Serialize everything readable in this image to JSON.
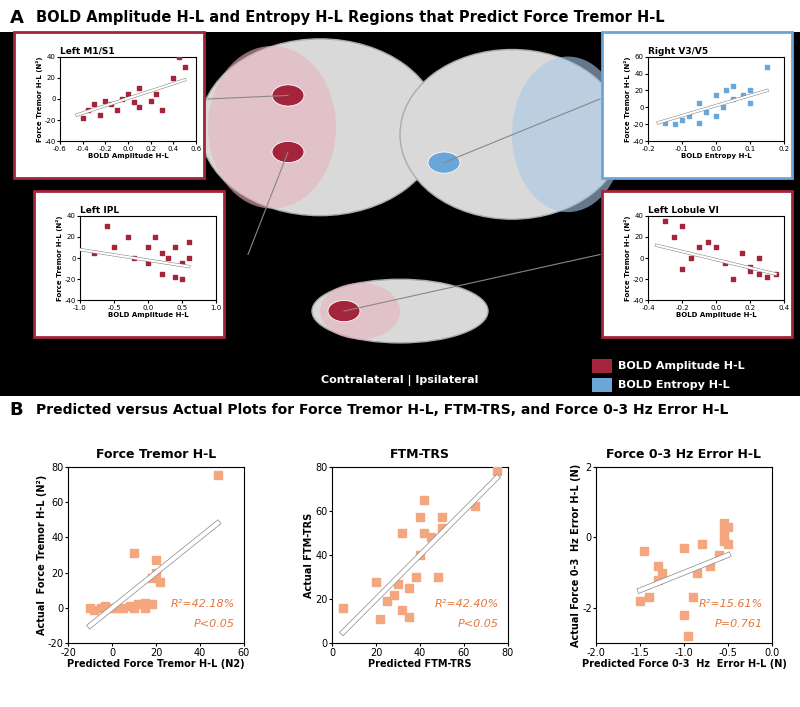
{
  "panel_a": {
    "letter": "A",
    "title": "BOLD Amplitude H-L and Entropy H-L Regions that Predict Force Tremor H-L",
    "region_key": [
      {
        "name": "BOLD Amplitude H-L",
        "color": "#a3243b"
      },
      {
        "name": "BOLD Entropy H-L",
        "color": "#6aa6d8"
      }
    ],
    "view_label": "Contralateral | Ipsilateral"
  },
  "panel_b": {
    "letter": "B",
    "title": "Predicted versus Actual Plots for Force Tremor H-L, FTM-TRS, and Force 0-3 Hz Error H-L"
  },
  "chart_data": [
    {
      "type": "scatter",
      "title": "Left M1/S1",
      "x_label": "BOLD Amplitude H-L",
      "y_label": "Force Tremor H-L (N²)",
      "xlim": [
        -0.6,
        0.6
      ],
      "ylim": [
        -40,
        40
      ],
      "xticks": [
        -0.6,
        -0.4,
        -0.2,
        0.0,
        0.2,
        0.4,
        0.6
      ],
      "yticks": [
        -40,
        -20,
        0,
        20,
        40
      ],
      "x": [
        -0.4,
        -0.35,
        -0.3,
        -0.25,
        -0.2,
        -0.15,
        -0.1,
        -0.05,
        0.0,
        0.05,
        0.1,
        0.1,
        0.2,
        0.25,
        0.3,
        0.4,
        0.45,
        0.5
      ],
      "values": [
        -18,
        -10,
        -5,
        -15,
        -2,
        -5,
        -10,
        0,
        5,
        -3,
        -8,
        10,
        -2,
        5,
        -10,
        20,
        40,
        30
      ],
      "color": "#a3243b",
      "marker": "square",
      "fit": {
        "x": [
          -0.45,
          0.5
        ],
        "values": [
          -15,
          18
        ],
        "color": "#ffffff"
      }
    },
    {
      "type": "scatter",
      "title": "Right V3/V5",
      "x_label": "BOLD Entropy H-L",
      "y_label": "Force Tremor H-L (N²)",
      "xlim": [
        -0.2,
        0.2
      ],
      "ylim": [
        -40,
        60
      ],
      "xticks": [
        -0.2,
        -0.1,
        0.0,
        0.1,
        0.2
      ],
      "yticks": [
        -40,
        -20,
        0,
        20,
        40,
        60
      ],
      "x": [
        -0.15,
        -0.12,
        -0.1,
        -0.08,
        -0.05,
        -0.05,
        -0.03,
        0.0,
        0.0,
        0.02,
        0.03,
        0.05,
        0.05,
        0.08,
        0.1,
        0.1,
        0.15
      ],
      "values": [
        -18,
        -20,
        -15,
        -10,
        -18,
        5,
        -5,
        -10,
        15,
        0,
        20,
        10,
        25,
        15,
        5,
        20,
        48
      ],
      "color": "#6aa6d8",
      "marker": "square",
      "fit": {
        "x": [
          -0.17,
          0.15
        ],
        "values": [
          -18,
          20
        ],
        "color": "#ffffff"
      }
    },
    {
      "type": "scatter",
      "title": "Left IPL",
      "x_label": "BOLD Amplitude H-L",
      "y_label": "Force Tremor H-L (N²)",
      "xlim": [
        -1.0,
        1.0
      ],
      "ylim": [
        -40,
        40
      ],
      "xticks": [
        -1.0,
        -0.5,
        0.0,
        0.5,
        1.0
      ],
      "yticks": [
        -40,
        -20,
        0,
        20,
        40
      ],
      "x": [
        -0.8,
        -0.6,
        -0.5,
        -0.3,
        -0.2,
        0.0,
        0.0,
        0.1,
        0.2,
        0.2,
        0.3,
        0.4,
        0.4,
        0.5,
        0.5,
        0.6,
        0.6
      ],
      "values": [
        5,
        30,
        10,
        20,
        0,
        10,
        -5,
        20,
        5,
        -15,
        0,
        -18,
        10,
        -5,
        -20,
        0,
        15
      ],
      "color": "#a3243b",
      "marker": "square",
      "fit": {
        "x": [
          -1.0,
          0.6
        ],
        "values": [
          8,
          -8
        ],
        "color": "#ffffff"
      }
    },
    {
      "type": "scatter",
      "title": "Left Lobule VI",
      "x_label": "BOLD Amplitude H-L",
      "y_label": "Force Tremor H-L (N²)",
      "xlim": [
        -0.4,
        0.4
      ],
      "ylim": [
        -40,
        40
      ],
      "xticks": [
        -0.4,
        -0.2,
        0.0,
        0.2,
        0.4
      ],
      "yticks": [
        -40,
        -20,
        0,
        20,
        40
      ],
      "x": [
        -0.3,
        -0.25,
        -0.2,
        -0.2,
        -0.15,
        -0.1,
        -0.05,
        0.0,
        0.05,
        0.1,
        0.15,
        0.2,
        0.2,
        0.25,
        0.25,
        0.3,
        0.35
      ],
      "values": [
        35,
        20,
        30,
        -10,
        0,
        10,
        15,
        10,
        -5,
        -20,
        5,
        -8,
        -12,
        0,
        -15,
        -18,
        -15
      ],
      "color": "#a3243b",
      "marker": "square",
      "fit": {
        "x": [
          -0.35,
          0.35
        ],
        "values": [
          12,
          -15
        ],
        "color": "#ffffff"
      }
    },
    {
      "type": "scatter",
      "title": "Force Tremor H-L",
      "x_label": "Predicted Force Tremor H-L (N2)",
      "y_label": "Actual  Force Tremor H-L (N²)",
      "xlim": [
        -20,
        60
      ],
      "ylim": [
        -20,
        80
      ],
      "xticks": [
        -20,
        0,
        20,
        40,
        60
      ],
      "yticks": [
        -20,
        0,
        20,
        40,
        60,
        80
      ],
      "x": [
        -10,
        -8,
        -5,
        -3,
        0,
        2,
        5,
        8,
        10,
        12,
        10,
        15,
        18,
        18,
        20,
        20,
        22,
        15,
        48
      ],
      "values": [
        0,
        -1,
        0,
        1,
        0,
        0,
        0,
        1,
        0,
        2,
        31,
        0,
        2,
        17,
        27,
        20,
        15,
        3,
        75
      ],
      "color": "#f4a77f",
      "marker": "square",
      "fit": {
        "x": [
          -10,
          48
        ],
        "values": [
          -10,
          48
        ],
        "color": "#ffffff"
      },
      "annotations": [
        "R²=42.18%",
        "P<0.05"
      ]
    },
    {
      "type": "scatter",
      "title": "FTM-TRS",
      "x_label": "Predicted FTM-TRS",
      "y_label": "Actual FTM-TRS",
      "xlim": [
        0,
        80
      ],
      "ylim": [
        0,
        80
      ],
      "xticks": [
        0,
        20,
        40,
        60,
        80
      ],
      "yticks": [
        0,
        20,
        40,
        60,
        80
      ],
      "x": [
        5,
        20,
        22,
        25,
        28,
        30,
        32,
        32,
        35,
        35,
        38,
        40,
        40,
        42,
        42,
        45,
        48,
        50,
        50,
        65,
        75
      ],
      "values": [
        16,
        28,
        11,
        19,
        22,
        27,
        15,
        50,
        12,
        25,
        30,
        40,
        57,
        65,
        50,
        48,
        30,
        52,
        57,
        62,
        78
      ],
      "color": "#f4a77f",
      "marker": "square",
      "fit": {
        "x": [
          5,
          75
        ],
        "values": [
          5,
          75
        ],
        "color": "#ffffff"
      },
      "annotations": [
        "R²=42.40%",
        "P<0.05"
      ]
    },
    {
      "type": "scatter",
      "title": "Force 0-3 Hz Error H-L",
      "x_label": "Predicted Force 0-3  Hz  Error H-L (N)",
      "y_label": "Actual Force 0-3  Hz Error H-L (N)",
      "xlim": [
        -2.0,
        0.0
      ],
      "ylim": [
        -3,
        2
      ],
      "xticks": [
        -2.0,
        -1.5,
        -1.0,
        -0.5,
        0.0
      ],
      "yticks": [
        -2,
        0,
        2
      ],
      "x": [
        -1.5,
        -1.45,
        -1.4,
        -1.3,
        -1.3,
        -1.25,
        -1.0,
        -1.0,
        -0.95,
        -0.9,
        -0.85,
        -0.8,
        -0.7,
        -0.6,
        -0.55,
        -0.55,
        -0.55,
        -0.55,
        -0.5,
        -0.5
      ],
      "values": [
        -1.8,
        -0.4,
        -1.7,
        -1.2,
        -0.8,
        -1.0,
        -0.3,
        -2.2,
        -2.8,
        -1.7,
        -1.0,
        -0.2,
        -0.8,
        -0.5,
        0.0,
        0.4,
        0.2,
        -0.1,
        0.3,
        -0.2
      ],
      "color": "#f4a77f",
      "marker": "square",
      "fit": {
        "x": [
          -1.5,
          -0.5
        ],
        "values": [
          -1.5,
          -0.5
        ],
        "color": "#ffffff"
      },
      "annotations": [
        "R²=15.61%",
        "P=0.761"
      ]
    }
  ]
}
